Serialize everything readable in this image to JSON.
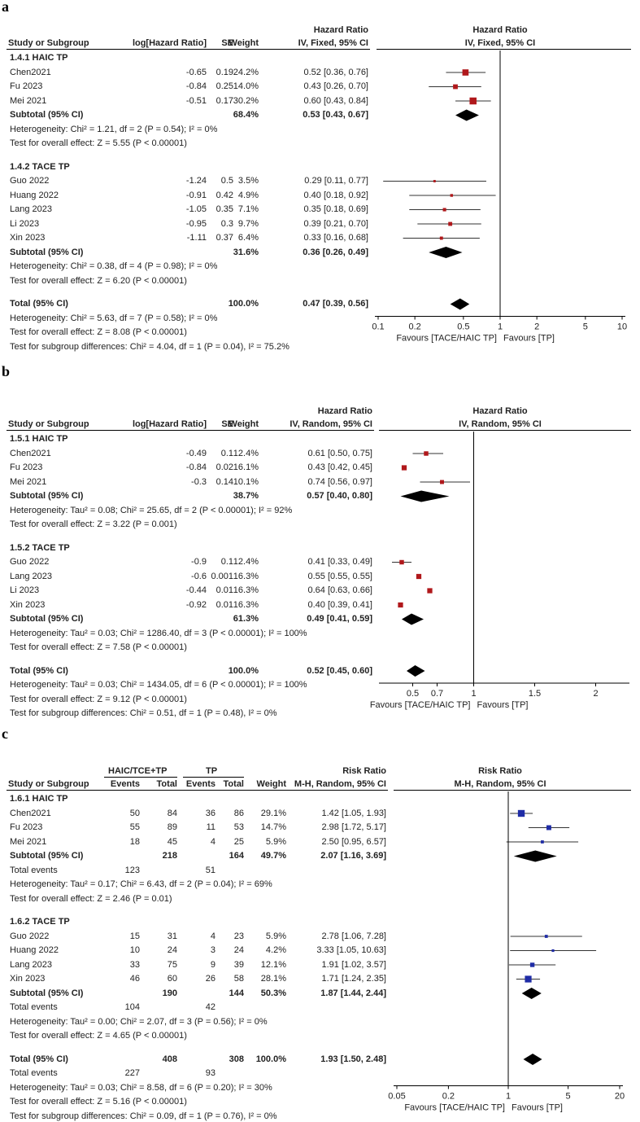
{
  "chart_data": [
    {
      "type": "forest",
      "panel_label": "a",
      "columns": {
        "study": "Study or Subgroup",
        "log": "log[Hazard Ratio]",
        "se": "SE",
        "weight": "Weight",
        "effect_top": "Hazard Ratio",
        "effect_bottom": "IV, Fixed, 95% CI",
        "plot_top": "Hazard Ratio",
        "plot_bottom": "IV, Fixed, 95% CI"
      },
      "axis": {
        "scale": "log",
        "min": 0.1,
        "max": 10,
        "ticks": [
          "0.1",
          "0.2",
          "0.5",
          "1",
          "2",
          "5",
          "10"
        ],
        "favours_left": "Favours [TACE/HAIC TP]",
        "favours_right": "Favours [TP]"
      },
      "marker": "#b0181b",
      "groups": [
        {
          "name": "1.4.1 HAIC TP",
          "studies": [
            {
              "name": "Chen2021",
              "log": "-0.65",
              "se": "0.19",
              "weight": "24.2%",
              "ci": "0.52 [0.36, 0.76]",
              "est": 0.52,
              "lo": 0.36,
              "hi": 0.76,
              "w": 24.2
            },
            {
              "name": "Fu 2023",
              "log": "-0.84",
              "se": "0.25",
              "weight": "14.0%",
              "ci": "0.43 [0.26, 0.70]",
              "est": 0.43,
              "lo": 0.26,
              "hi": 0.7,
              "w": 14.0
            },
            {
              "name": "Mei 2021",
              "log": "-0.51",
              "se": "0.17",
              "weight": "30.2%",
              "ci": "0.60 [0.43, 0.84]",
              "est": 0.6,
              "lo": 0.43,
              "hi": 0.84,
              "w": 30.2
            }
          ],
          "subtotal": {
            "label": "Subtotal (95% CI)",
            "weight": "68.4%",
            "ci": "0.53 [0.43, 0.67]",
            "est": 0.53,
            "lo": 0.43,
            "hi": 0.67
          },
          "notes": [
            "Heterogeneity: Chi² = 1.21, df = 2 (P = 0.54); I² = 0%",
            "Test for overall effect: Z = 5.55 (P < 0.00001)"
          ]
        },
        {
          "name": "1.4.2 TACE TP",
          "studies": [
            {
              "name": "Guo 2022",
              "log": "-1.24",
              "se": "0.5",
              "weight": "3.5%",
              "ci": "0.29 [0.11, 0.77]",
              "est": 0.29,
              "lo": 0.11,
              "hi": 0.77,
              "w": 3.5
            },
            {
              "name": "Huang 2022",
              "log": "-0.91",
              "se": "0.42",
              "weight": "4.9%",
              "ci": "0.40 [0.18, 0.92]",
              "est": 0.4,
              "lo": 0.18,
              "hi": 0.92,
              "w": 4.9
            },
            {
              "name": "Lang 2023",
              "log": "-1.05",
              "se": "0.35",
              "weight": "7.1%",
              "ci": "0.35 [0.18, 0.69]",
              "est": 0.35,
              "lo": 0.18,
              "hi": 0.69,
              "w": 7.1
            },
            {
              "name": "Li 2023",
              "log": "-0.95",
              "se": "0.3",
              "weight": "9.7%",
              "ci": "0.39 [0.21, 0.70]",
              "est": 0.39,
              "lo": 0.21,
              "hi": 0.7,
              "w": 9.7
            },
            {
              "name": "Xin 2023",
              "log": "-1.11",
              "se": "0.37",
              "weight": "6.4%",
              "ci": "0.33 [0.16, 0.68]",
              "est": 0.33,
              "lo": 0.16,
              "hi": 0.68,
              "w": 6.4
            }
          ],
          "subtotal": {
            "label": "Subtotal (95% CI)",
            "weight": "31.6%",
            "ci": "0.36 [0.26, 0.49]",
            "est": 0.36,
            "lo": 0.26,
            "hi": 0.49
          },
          "notes": [
            "Heterogeneity: Chi² = 0.38, df = 4 (P = 0.98); I² = 0%",
            "Test for overall effect: Z = 6.20 (P < 0.00001)"
          ]
        }
      ],
      "total": {
        "label": "Total (95% CI)",
        "weight": "100.0%",
        "ci": "0.47 [0.39, 0.56]",
        "est": 0.47,
        "lo": 0.39,
        "hi": 0.56
      },
      "total_notes": [
        "Heterogeneity: Chi² = 5.63, df = 7 (P = 0.58); I² = 0%",
        "Test for overall effect: Z = 8.08 (P < 0.00001)",
        "Test for subgroup differences: Chi² = 4.04, df = 1 (P = 0.04), I² = 75.2%"
      ]
    },
    {
      "type": "forest",
      "panel_label": "b",
      "columns": {
        "study": "Study or Subgroup",
        "log": "log[Hazard Ratio]",
        "se": "SE",
        "weight": "Weight",
        "effect_top": "Hazard Ratio",
        "effect_bottom": "IV, Random, 95% CI",
        "plot_top": "Hazard Ratio",
        "plot_bottom": "IV, Random, 95% CI"
      },
      "axis": {
        "scale": "linear",
        "min": 0.25,
        "max": 2.25,
        "ticks": [
          "0.5",
          "0.7",
          "1",
          "1.5",
          "2"
        ],
        "favours_left": "Favours [TACE/HAIC TP]",
        "favours_right": "Favours [TP]"
      },
      "marker": "#b0181b",
      "groups": [
        {
          "name": "1.5.1 HAIC TP",
          "studies": [
            {
              "name": "Chen2021",
              "log": "-0.49",
              "se": "0.1",
              "weight": "12.4%",
              "ci": "0.61 [0.50, 0.75]",
              "est": 0.61,
              "lo": 0.5,
              "hi": 0.75,
              "w": 12.4
            },
            {
              "name": "Fu 2023",
              "log": "-0.84",
              "se": "0.02",
              "weight": "16.1%",
              "ci": "0.43 [0.42, 0.45]",
              "est": 0.43,
              "lo": 0.42,
              "hi": 0.45,
              "w": 16.1
            },
            {
              "name": "Mei 2021",
              "log": "-0.3",
              "se": "0.14",
              "weight": "10.1%",
              "ci": "0.74 [0.56, 0.97]",
              "est": 0.74,
              "lo": 0.56,
              "hi": 0.97,
              "w": 10.1
            }
          ],
          "subtotal": {
            "label": "Subtotal (95% CI)",
            "weight": "38.7%",
            "ci": "0.57 [0.40, 0.80]",
            "est": 0.57,
            "lo": 0.4,
            "hi": 0.8
          },
          "notes": [
            "Heterogeneity: Tau² = 0.08; Chi² = 25.65, df = 2 (P < 0.00001); I² = 92%",
            "Test for overall effect: Z = 3.22 (P = 0.001)"
          ]
        },
        {
          "name": "1.5.2 TACE TP",
          "studies": [
            {
              "name": "Guo 2022",
              "log": "-0.9",
              "se": "0.1",
              "weight": "12.4%",
              "ci": "0.41 [0.33, 0.49]",
              "est": 0.41,
              "lo": 0.33,
              "hi": 0.49,
              "w": 12.4
            },
            {
              "name": "Lang 2023",
              "log": "-0.6",
              "se": "0.001",
              "weight": "16.3%",
              "ci": "0.55 [0.55, 0.55]",
              "est": 0.55,
              "lo": 0.55,
              "hi": 0.55,
              "w": 16.3
            },
            {
              "name": "Li 2023",
              "log": "-0.44",
              "se": "0.01",
              "weight": "16.3%",
              "ci": "0.64 [0.63, 0.66]",
              "est": 0.64,
              "lo": 0.63,
              "hi": 0.66,
              "w": 16.3
            },
            {
              "name": "Xin 2023",
              "log": "-0.92",
              "se": "0.01",
              "weight": "16.3%",
              "ci": "0.40 [0.39, 0.41]",
              "est": 0.4,
              "lo": 0.39,
              "hi": 0.41,
              "w": 16.3
            }
          ],
          "subtotal": {
            "label": "Subtotal (95% CI)",
            "weight": "61.3%",
            "ci": "0.49 [0.41, 0.59]",
            "est": 0.49,
            "lo": 0.41,
            "hi": 0.59
          },
          "notes": [
            "Heterogeneity: Tau² = 0.03; Chi² = 1286.40, df = 3 (P < 0.00001); I² = 100%",
            "Test for overall effect: Z = 7.58 (P < 0.00001)"
          ]
        }
      ],
      "total": {
        "label": "Total (95% CI)",
        "weight": "100.0%",
        "ci": "0.52 [0.45, 0.60]",
        "est": 0.52,
        "lo": 0.45,
        "hi": 0.6
      },
      "total_notes": [
        "Heterogeneity: Tau² = 0.03; Chi² = 1434.05, df = 6 (P < 0.00001); I² = 100%",
        "Test for overall effect: Z = 9.12 (P < 0.00001)",
        "Test for subgroup differences: Chi² = 0.51, df = 1 (P = 0.48), I² = 0%"
      ]
    },
    {
      "type": "forest",
      "panel_label": "c",
      "columns": {
        "exp_group": "HAIC/TCE+TP",
        "ctl_group": "TP",
        "study": "Study or Subgroup",
        "events": "Events",
        "total": "Total",
        "weight": "Weight",
        "effect_top": "Risk Ratio",
        "effect_bottom": "M-H, Random, 95% CI",
        "plot_top": "Risk Ratio",
        "plot_bottom": "M-H, Random, 95% CI"
      },
      "axis": {
        "scale": "log",
        "min": 0.05,
        "max": 20,
        "ticks": [
          "0.05",
          "0.2",
          "1",
          "5",
          "20"
        ],
        "favours_left": "Favours [TACE/HAIC TP]",
        "favours_right": "Favours [TP]"
      },
      "marker": "#1f2ca6",
      "groups": [
        {
          "name": "1.6.1 HAIC TP",
          "studies": [
            {
              "name": "Chen2021",
              "e1": "50",
              "n1": "84",
              "e2": "36",
              "n2": "86",
              "weight": "29.1%",
              "ci": "1.42 [1.05, 1.93]",
              "est": 1.42,
              "lo": 1.05,
              "hi": 1.93,
              "w": 29.1
            },
            {
              "name": "Fu 2023",
              "e1": "55",
              "n1": "89",
              "e2": "11",
              "n2": "53",
              "weight": "14.7%",
              "ci": "2.98 [1.72, 5.17]",
              "est": 2.98,
              "lo": 1.72,
              "hi": 5.17,
              "w": 14.7
            },
            {
              "name": "Mei 2021",
              "e1": "18",
              "n1": "45",
              "e2": "4",
              "n2": "25",
              "weight": "5.9%",
              "ci": "2.50 [0.95, 6.57]",
              "est": 2.5,
              "lo": 0.95,
              "hi": 6.57,
              "w": 5.9
            }
          ],
          "subtotal": {
            "label": "Subtotal (95% CI)",
            "n1": "218",
            "n2": "164",
            "weight": "49.7%",
            "ci": "2.07 [1.16, 3.69]",
            "est": 2.07,
            "lo": 1.16,
            "hi": 3.69
          },
          "events_label": "Total events",
          "events_e1": "123",
          "events_e2": "51",
          "notes": [
            "Heterogeneity: Tau² = 0.17; Chi² = 6.43, df = 2 (P = 0.04); I² = 69%",
            "Test for overall effect: Z = 2.46 (P = 0.01)"
          ]
        },
        {
          "name": "1.6.2 TACE TP",
          "studies": [
            {
              "name": "Guo 2022",
              "e1": "15",
              "n1": "31",
              "e2": "4",
              "n2": "23",
              "weight": "5.9%",
              "ci": "2.78 [1.06, 7.28]",
              "est": 2.78,
              "lo": 1.06,
              "hi": 7.28,
              "w": 5.9
            },
            {
              "name": "Huang 2022",
              "e1": "10",
              "n1": "24",
              "e2": "3",
              "n2": "24",
              "weight": "4.2%",
              "ci": "3.33 [1.05, 10.63]",
              "est": 3.33,
              "lo": 1.05,
              "hi": 10.63,
              "w": 4.2
            },
            {
              "name": "Lang 2023",
              "e1": "33",
              "n1": "75",
              "e2": "9",
              "n2": "39",
              "weight": "12.1%",
              "ci": "1.91 [1.02, 3.57]",
              "est": 1.91,
              "lo": 1.02,
              "hi": 3.57,
              "w": 12.1
            },
            {
              "name": "Xin 2023",
              "e1": "46",
              "n1": "60",
              "e2": "26",
              "n2": "58",
              "weight": "28.1%",
              "ci": "1.71 [1.24, 2.35]",
              "est": 1.71,
              "lo": 1.24,
              "hi": 2.35,
              "w": 28.1
            }
          ],
          "subtotal": {
            "label": "Subtotal (95% CI)",
            "n1": "190",
            "n2": "144",
            "weight": "50.3%",
            "ci": "1.87 [1.44, 2.44]",
            "est": 1.87,
            "lo": 1.44,
            "hi": 2.44
          },
          "events_label": "Total events",
          "events_e1": "104",
          "events_e2": "42",
          "notes": [
            "Heterogeneity: Tau² = 0.00; Chi² = 2.07, df = 3 (P = 0.56); I² = 0%",
            "Test for overall effect: Z = 4.65 (P < 0.00001)"
          ]
        }
      ],
      "total": {
        "label": "Total (95% CI)",
        "n1": "408",
        "n2": "308",
        "weight": "100.0%",
        "ci": "1.93 [1.50, 2.48]",
        "est": 1.93,
        "lo": 1.5,
        "hi": 2.48
      },
      "total_events_label": "Total events",
      "total_events_e1": "227",
      "total_events_e2": "93",
      "total_notes": [
        "Heterogeneity: Tau² = 0.03; Chi² = 8.58, df = 6 (P = 0.20); I² = 30%",
        "Test for overall effect: Z = 5.16 (P < 0.00001)",
        "Test for subgroup differences: Chi² = 0.09, df = 1 (P = 0.76), I² = 0%"
      ]
    }
  ]
}
